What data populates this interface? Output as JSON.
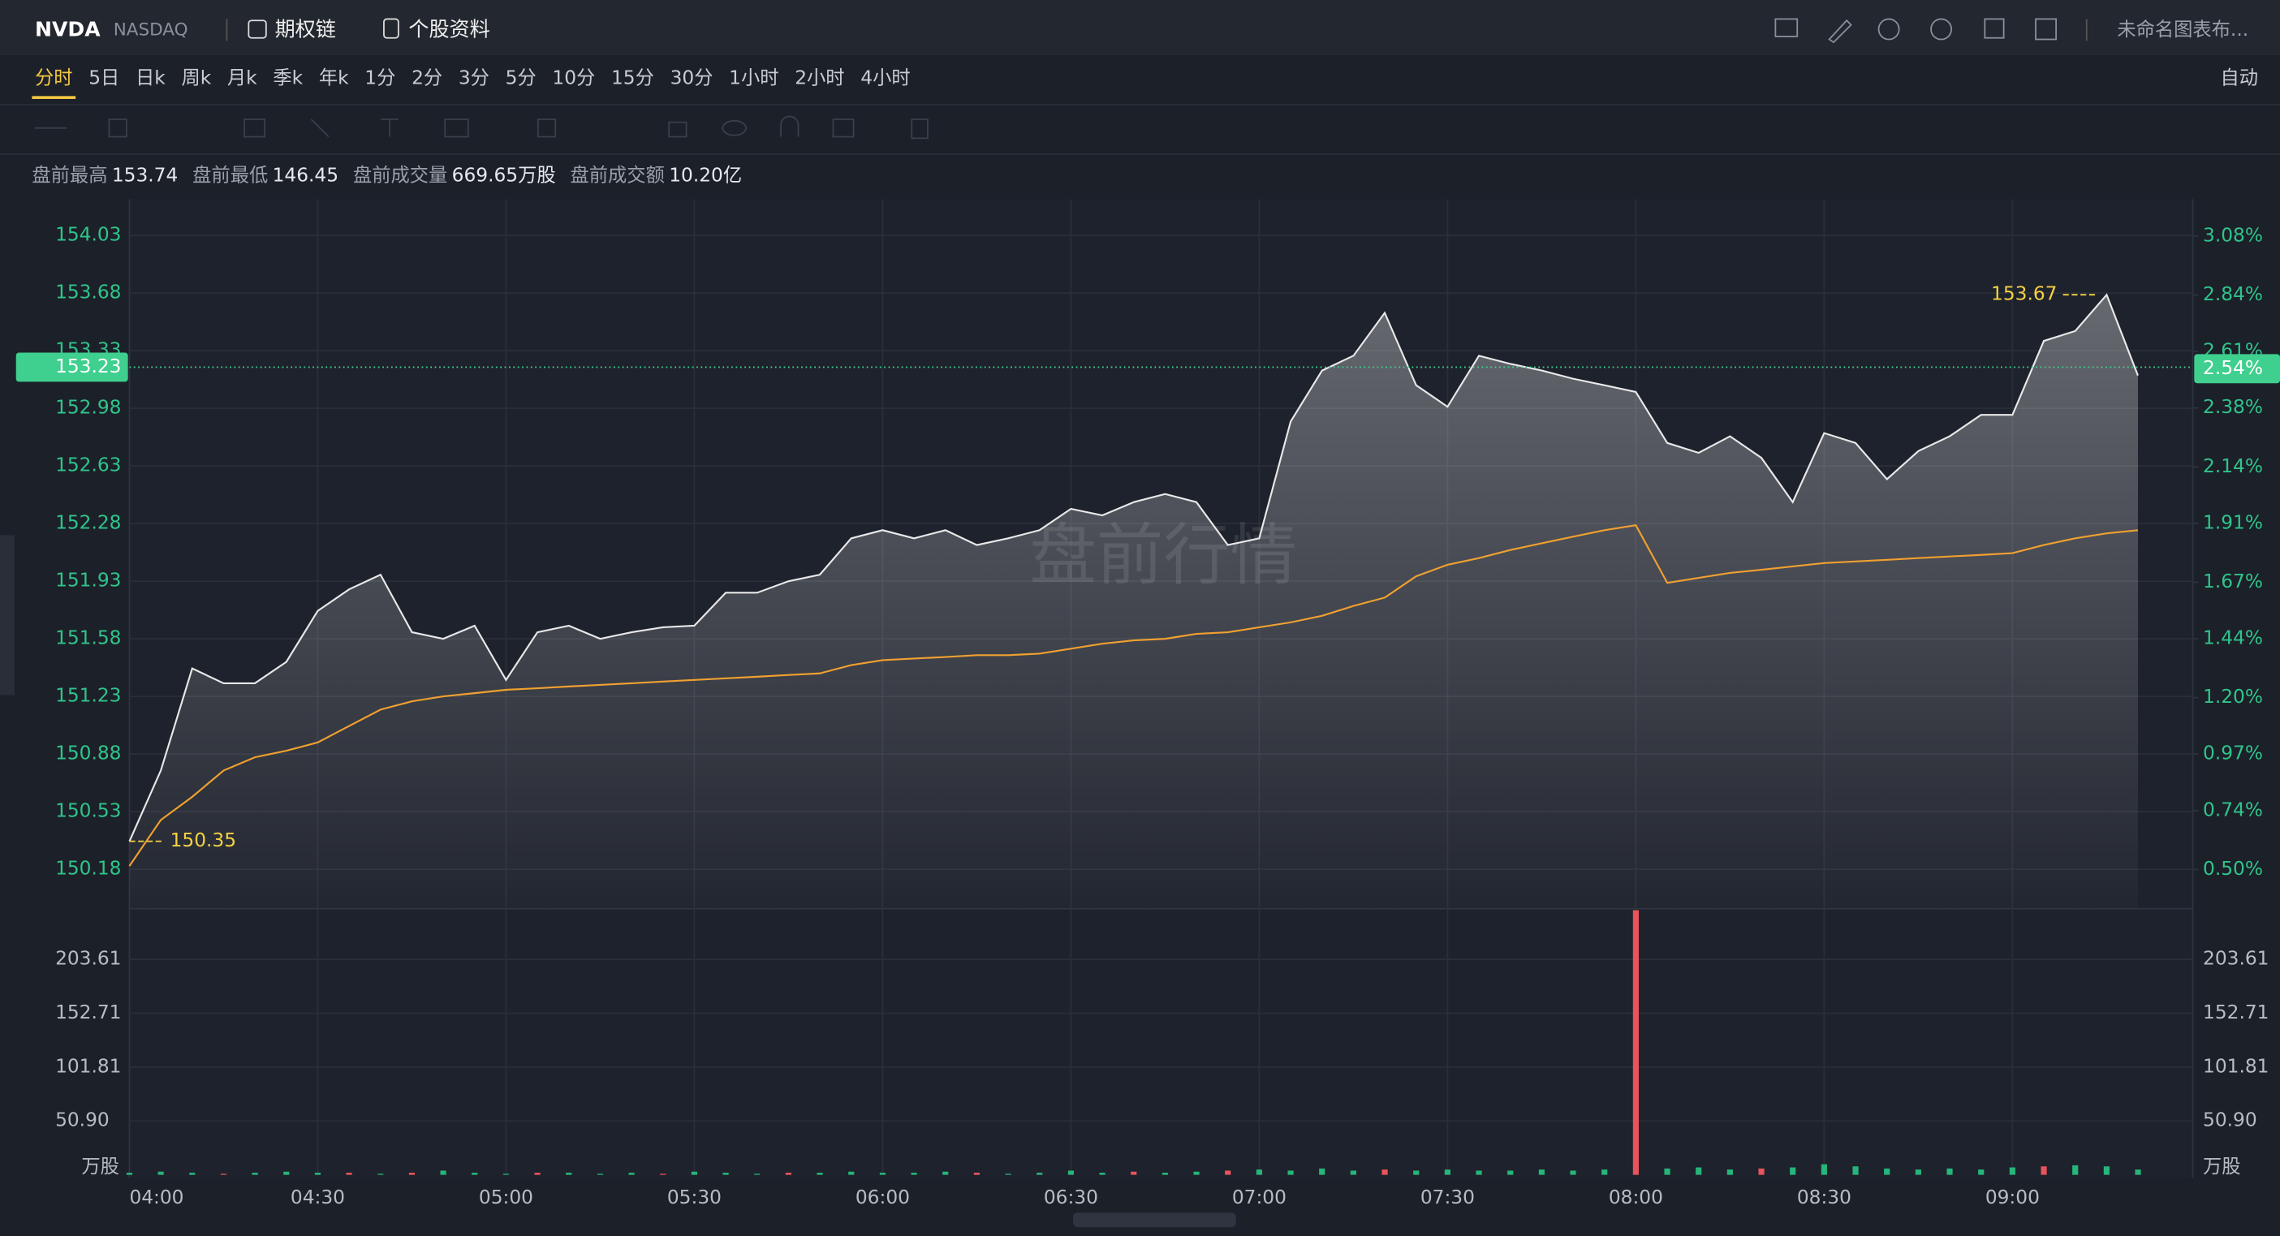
{
  "header": {
    "symbol": "NVDA",
    "exchange": "NASDAQ",
    "links": [
      "期权链",
      "个股资料"
    ],
    "layout_name": "未命名图表布..."
  },
  "tabs": [
    "分时",
    "5日",
    "日k",
    "周k",
    "月k",
    "季k",
    "年k",
    "1分",
    "2分",
    "3分",
    "5分",
    "10分",
    "15分",
    "30分",
    "1小时",
    "2小时",
    "4小时"
  ],
  "active_tab": "分时",
  "scale_mode": "自动",
  "stats": [
    {
      "label": "盘前最高",
      "value": "153.74"
    },
    {
      "label": "盘前最低",
      "value": "146.45"
    },
    {
      "label": "盘前成交量",
      "value": "669.65万股"
    },
    {
      "label": "盘前成交额",
      "value": "10.20亿"
    }
  ],
  "chart_data": {
    "type": "line",
    "watermark": "盘前行情",
    "x": [
      "04:00",
      "04:05",
      "04:10",
      "04:15",
      "04:20",
      "04:25",
      "04:30",
      "04:35",
      "04:40",
      "04:45",
      "04:50",
      "04:55",
      "05:00",
      "05:05",
      "05:10",
      "05:15",
      "05:20",
      "05:25",
      "05:30",
      "05:35",
      "05:40",
      "05:45",
      "05:50",
      "05:55",
      "06:00",
      "06:05",
      "06:10",
      "06:15",
      "06:20",
      "06:25",
      "06:30",
      "06:35",
      "06:40",
      "06:45",
      "06:50",
      "06:55",
      "07:00",
      "07:05",
      "07:10",
      "07:15",
      "07:20",
      "07:25",
      "07:30",
      "07:35",
      "07:40",
      "07:45",
      "07:50",
      "07:55",
      "08:00",
      "08:05",
      "08:10",
      "08:15",
      "08:20",
      "08:25",
      "08:30",
      "08:35",
      "08:40",
      "08:45",
      "08:50",
      "08:55",
      "09:00",
      "09:05",
      "09:10",
      "09:15",
      "09:20"
    ],
    "series": [
      {
        "name": "价格",
        "color": "#e8e8e8",
        "values": [
          150.35,
          150.78,
          151.4,
          151.31,
          151.31,
          151.44,
          151.75,
          151.88,
          151.97,
          151.62,
          151.58,
          151.66,
          151.33,
          151.62,
          151.66,
          151.58,
          151.62,
          151.65,
          151.66,
          151.86,
          151.86,
          151.93,
          151.97,
          152.19,
          152.24,
          152.19,
          152.24,
          152.15,
          152.19,
          152.24,
          152.37,
          152.33,
          152.41,
          152.46,
          152.41,
          152.15,
          152.19,
          152.9,
          153.21,
          153.3,
          153.56,
          153.12,
          152.99,
          153.3,
          153.25,
          153.21,
          153.16,
          153.12,
          153.08,
          152.77,
          152.71,
          152.81,
          152.68,
          152.41,
          152.83,
          152.77,
          152.55,
          152.72,
          152.81,
          152.94,
          152.94,
          153.39,
          153.45,
          153.67,
          153.18
        ]
      },
      {
        "name": "均价",
        "color": "#f0a030",
        "values": [
          150.2,
          150.48,
          150.62,
          150.78,
          150.86,
          150.9,
          150.95,
          151.05,
          151.15,
          151.2,
          151.23,
          151.25,
          151.27,
          151.28,
          151.29,
          151.3,
          151.31,
          151.32,
          151.33,
          151.34,
          151.35,
          151.36,
          151.37,
          151.42,
          151.45,
          151.46,
          151.47,
          151.48,
          151.48,
          151.49,
          151.52,
          151.55,
          151.57,
          151.58,
          151.61,
          151.62,
          151.65,
          151.68,
          151.72,
          151.78,
          151.83,
          151.96,
          152.03,
          152.07,
          152.12,
          152.16,
          152.2,
          152.24,
          152.27,
          151.92,
          151.95,
          151.98,
          152.0,
          152.02,
          152.04,
          152.05,
          152.06,
          152.07,
          152.08,
          152.09,
          152.1,
          152.15,
          152.19,
          152.22,
          152.24
        ]
      }
    ],
    "xticks": [
      "04:00",
      "04:30",
      "05:00",
      "05:30",
      "06:00",
      "06:30",
      "07:00",
      "07:30",
      "08:00",
      "08:30",
      "09:00"
    ],
    "ylim": [
      149.94,
      154.25
    ],
    "yticks": [
      150.18,
      150.53,
      150.88,
      151.23,
      151.58,
      151.93,
      152.28,
      152.63,
      152.98,
      153.33,
      153.68,
      154.03
    ],
    "y2lim": [
      0.34,
      3.23
    ],
    "y2ticks": [
      {
        "value": 0.5,
        "label": "0.50%"
      },
      {
        "value": 0.74,
        "label": "0.74%"
      },
      {
        "value": 0.97,
        "label": "0.97%"
      },
      {
        "value": 1.2,
        "label": "1.20%"
      },
      {
        "value": 1.44,
        "label": "1.44%"
      },
      {
        "value": 1.67,
        "label": "1.67%"
      },
      {
        "value": 1.91,
        "label": "1.91%"
      },
      {
        "value": 2.14,
        "label": "2.14%"
      },
      {
        "value": 2.38,
        "label": "2.38%"
      },
      {
        "value": 2.61,
        "label": "2.61%"
      },
      {
        "value": 2.84,
        "label": "2.84%"
      },
      {
        "value": 3.08,
        "label": "3.08%"
      }
    ],
    "current": {
      "value": 153.23,
      "pct": 2.54,
      "pct_label": "2.54%"
    },
    "annotations": [
      {
        "value": 153.67,
        "at": "09:15"
      },
      {
        "value": 150.35,
        "at": "04:00"
      }
    ],
    "grid": true,
    "volume": {
      "unit": "万股",
      "up_color": "#26b57a",
      "down_color": "#e8545c",
      "values": [
        2,
        3,
        2,
        1,
        2,
        3,
        2,
        2,
        1,
        2,
        4,
        2,
        1,
        2,
        2,
        1,
        2,
        1,
        3,
        2,
        1,
        2,
        2,
        3,
        2,
        2,
        3,
        2,
        1,
        2,
        4,
        2,
        3,
        2,
        3,
        4,
        5,
        4,
        6,
        4,
        5,
        4,
        5,
        4,
        4,
        5,
        4,
        5,
        250,
        6,
        7,
        5,
        6,
        7,
        10,
        8,
        6,
        5,
        6,
        5,
        7,
        8,
        9,
        8,
        5
      ],
      "down": [
        false,
        false,
        false,
        true,
        false,
        false,
        false,
        true,
        false,
        true,
        false,
        false,
        false,
        true,
        false,
        false,
        false,
        true,
        false,
        false,
        false,
        true,
        false,
        false,
        false,
        false,
        false,
        true,
        false,
        false,
        false,
        false,
        true,
        false,
        false,
        true,
        false,
        false,
        false,
        false,
        true,
        false,
        false,
        false,
        false,
        false,
        false,
        false,
        true,
        false,
        false,
        false,
        true,
        false,
        false,
        false,
        false,
        false,
        false,
        false,
        false,
        true,
        false,
        false,
        false
      ],
      "ylim": [
        0,
        250
      ],
      "yticks": [
        {
          "value": 50.9,
          "label": "50.90"
        },
        101.81,
        152.71,
        203.61
      ]
    }
  }
}
